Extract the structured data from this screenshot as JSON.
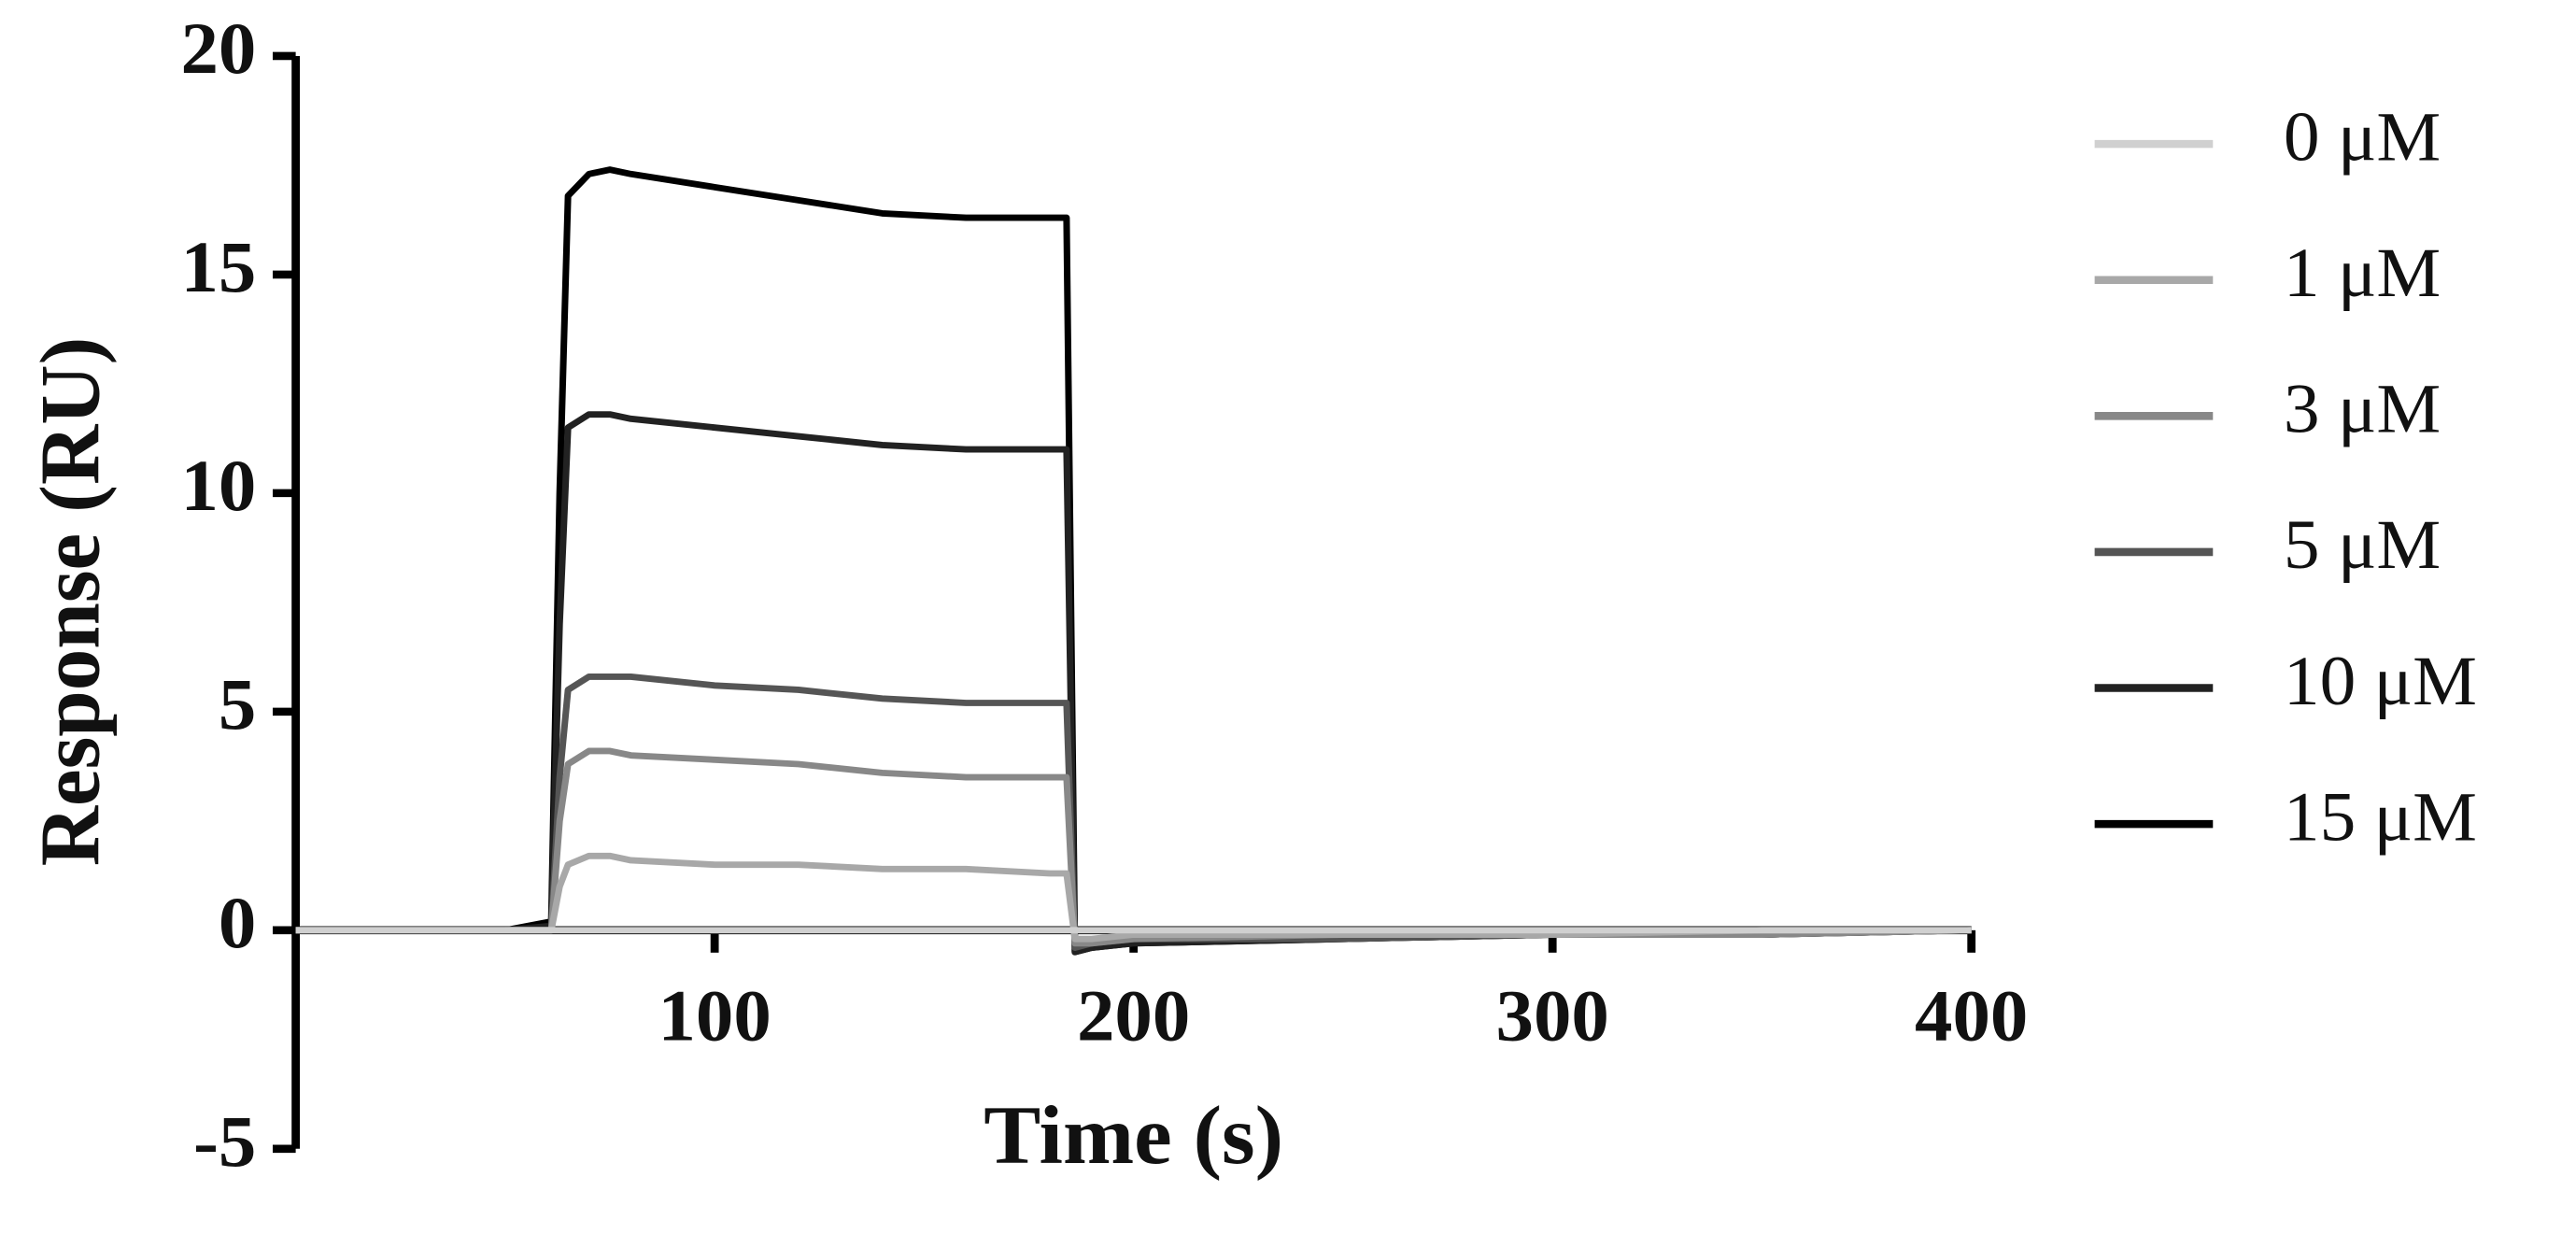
{
  "chart_data": {
    "type": "line",
    "x_label": "Time (s)",
    "y_label": "Response (RU)",
    "x": [
      0,
      50,
      61,
      63,
      65,
      70,
      75,
      80,
      100,
      120,
      140,
      160,
      180,
      184,
      186,
      190,
      200,
      250,
      300,
      350,
      400
    ],
    "series": [
      {
        "name": "0 μM",
        "color": "#d0d0d0",
        "values": [
          0,
          0,
          0,
          0,
          0,
          0,
          0,
          0,
          0,
          0,
          0,
          0,
          0,
          0,
          0,
          0,
          0,
          0,
          0,
          0,
          0
        ]
      },
      {
        "name": "1 μM",
        "color": "#a8a8a8",
        "values": [
          0,
          0,
          0,
          1,
          1.5,
          1.7,
          1.7,
          1.6,
          1.5,
          1.5,
          1.4,
          1.4,
          1.3,
          1.3,
          -0.2,
          -0.2,
          -0.1,
          -0.1,
          -0.1,
          0,
          0
        ]
      },
      {
        "name": "3 μM",
        "color": "#888888",
        "values": [
          0,
          0,
          0,
          2.5,
          3.8,
          4.1,
          4.1,
          4.0,
          3.9,
          3.8,
          3.6,
          3.5,
          3.5,
          3.5,
          -0.3,
          -0.3,
          -0.2,
          -0.1,
          -0.1,
          -0.1,
          0
        ]
      },
      {
        "name": "5 μM",
        "color": "#555555",
        "values": [
          0,
          0,
          0,
          3.5,
          5.5,
          5.8,
          5.8,
          5.8,
          5.6,
          5.5,
          5.3,
          5.2,
          5.2,
          5.2,
          -0.4,
          -0.3,
          -0.2,
          -0.2,
          -0.1,
          -0.1,
          0
        ]
      },
      {
        "name": "10 μM",
        "color": "#222222",
        "values": [
          0,
          0,
          0.1,
          7,
          11.5,
          11.8,
          11.8,
          11.7,
          11.5,
          11.3,
          11.1,
          11.0,
          11.0,
          11.0,
          -0.5,
          -0.4,
          -0.3,
          -0.2,
          -0.1,
          -0.1,
          0
        ]
      },
      {
        "name": "15 μM",
        "color": "#000000",
        "values": [
          0,
          0,
          0.2,
          10,
          16.8,
          17.3,
          17.4,
          17.3,
          17.0,
          16.7,
          16.4,
          16.3,
          16.3,
          16.3,
          -0.5,
          -0.4,
          -0.3,
          -0.2,
          -0.1,
          -0.1,
          0
        ]
      }
    ],
    "xlim": [
      0,
      400
    ],
    "xticks": [
      100,
      200,
      300,
      400
    ],
    "ylim": [
      -5,
      20
    ],
    "yticks": [
      -5,
      0,
      5,
      10,
      15,
      20
    ],
    "legend": "right"
  }
}
